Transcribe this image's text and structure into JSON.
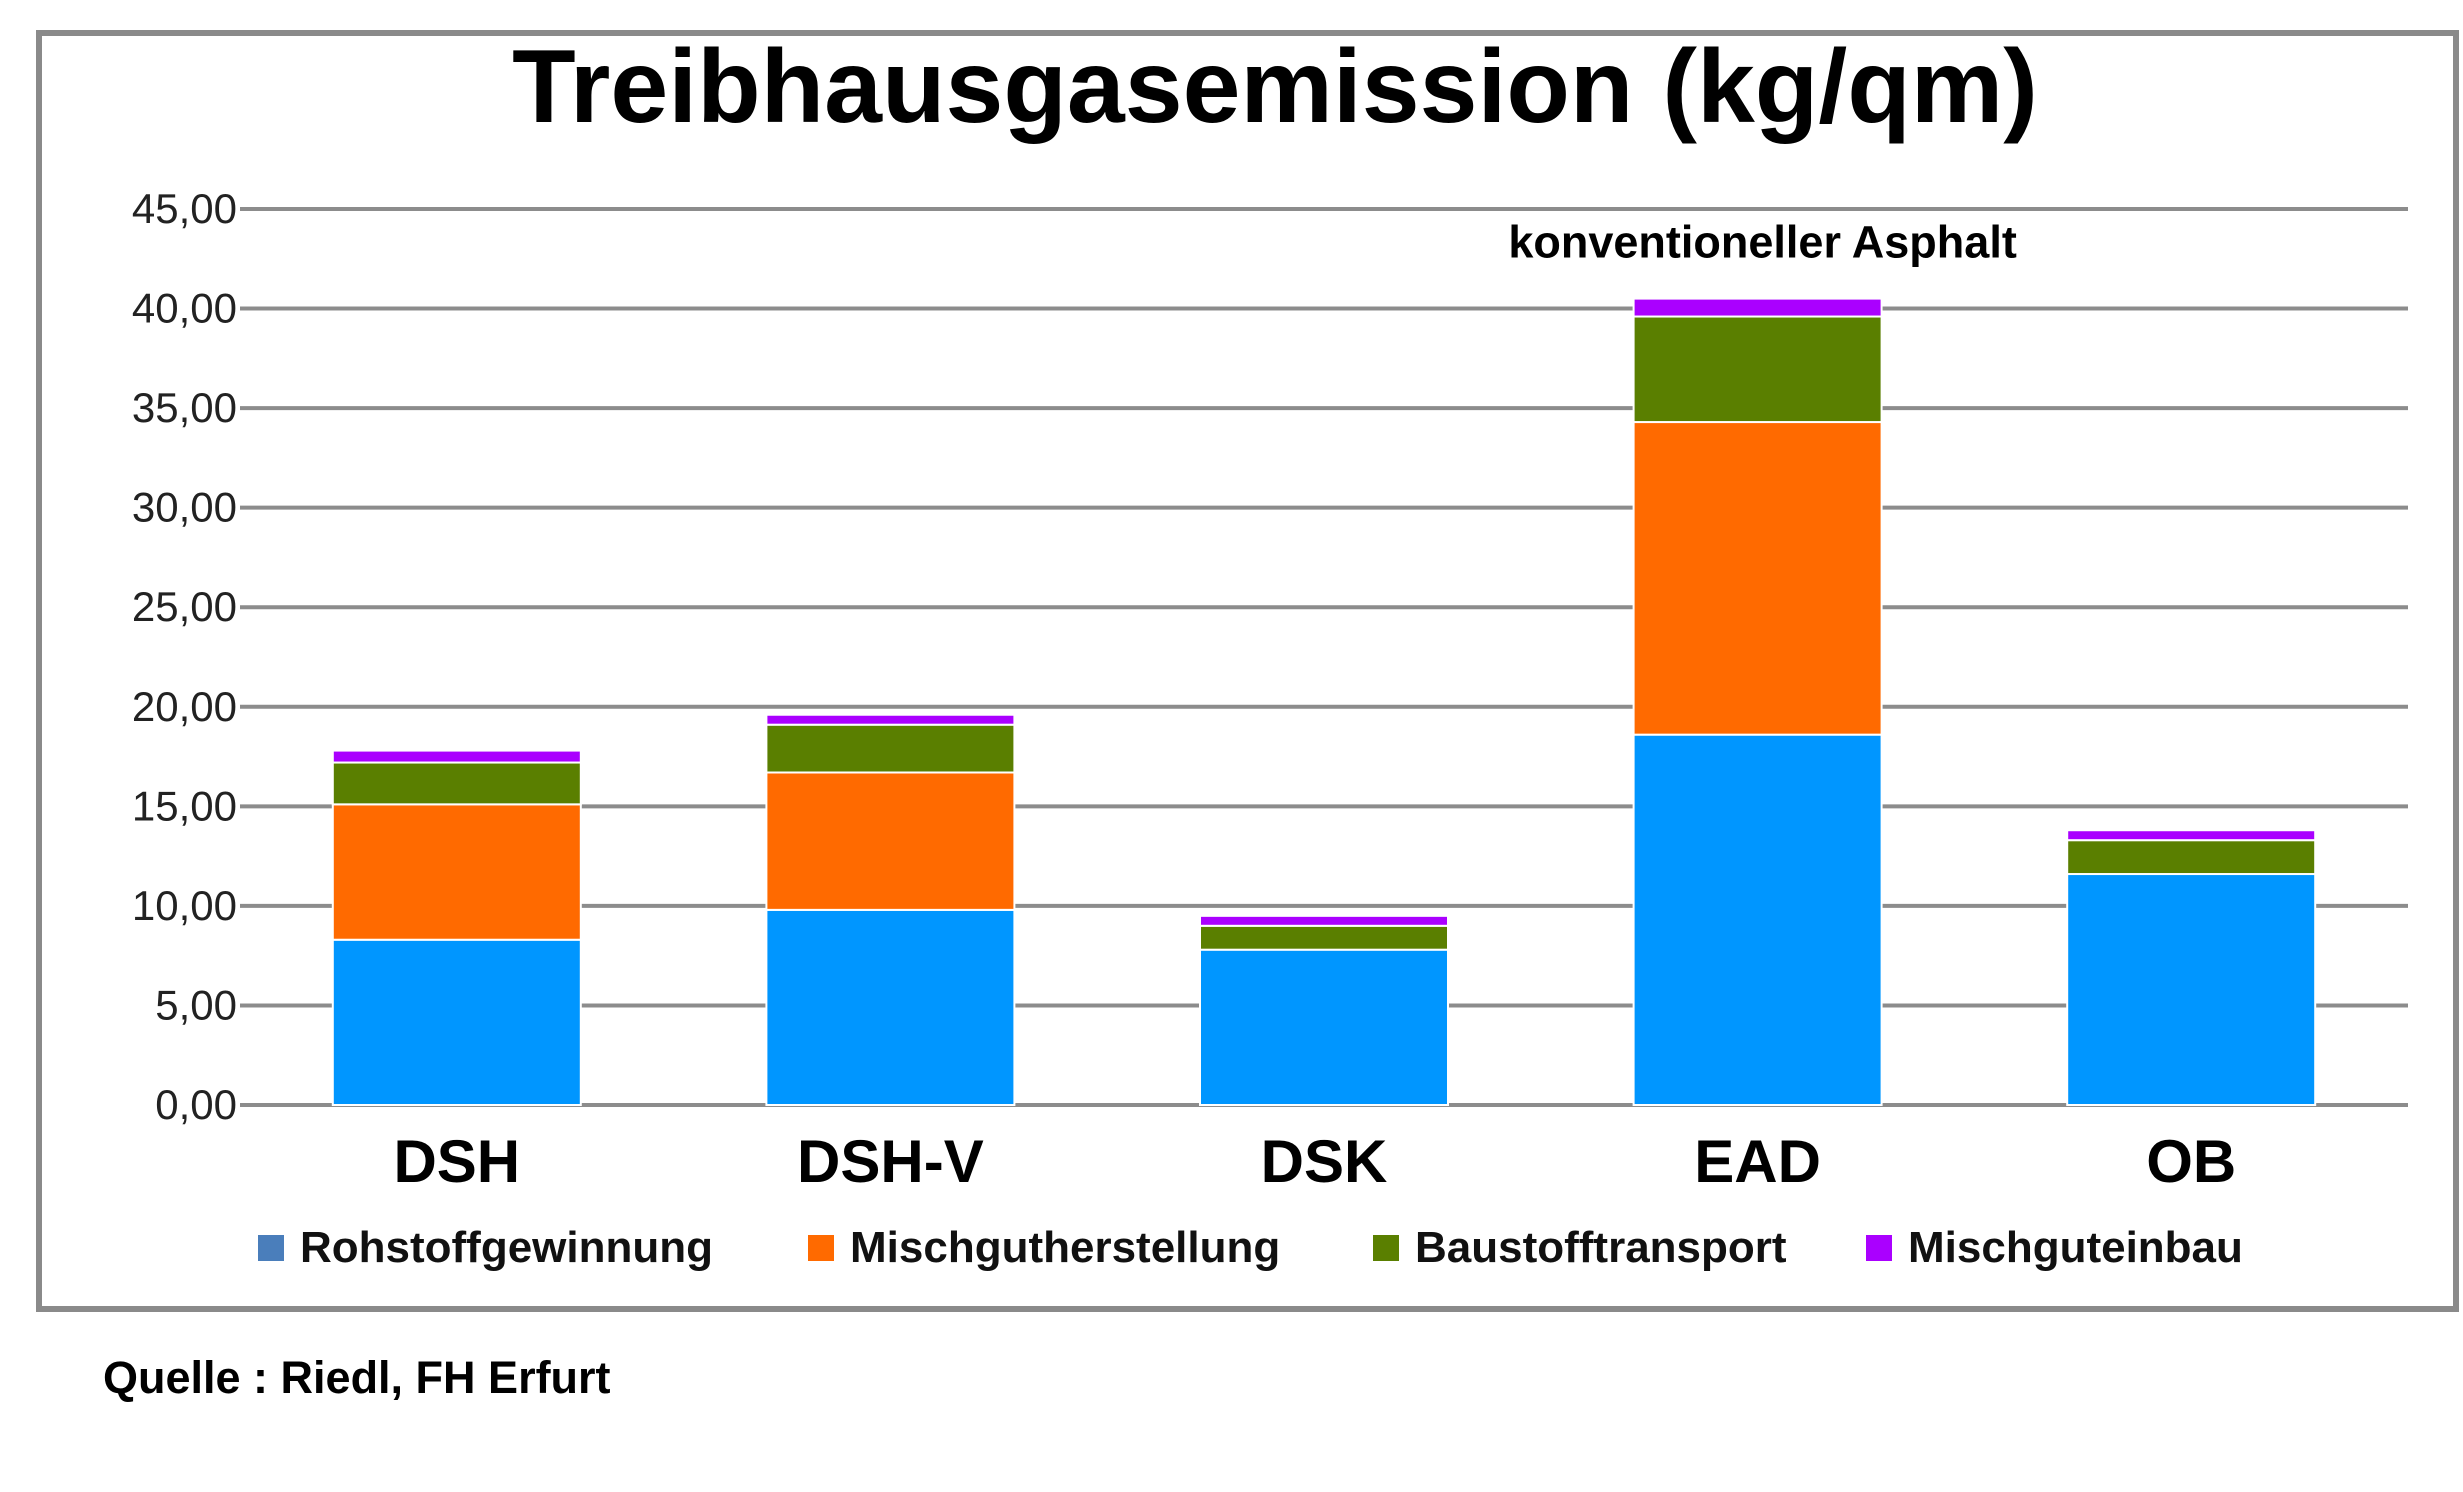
{
  "chart_data": {
    "type": "bar",
    "stacked": true,
    "title": "Treibhausgasemission (kg/qm)",
    "categories": [
      "DSH",
      "DSH-V",
      "DSK",
      "EAD",
      "OB"
    ],
    "series": [
      {
        "name": "Rohstoffgewinnung",
        "color": "#0096ff",
        "legend_color": "#4a7ebb",
        "values": [
          8.3,
          9.8,
          7.8,
          18.6,
          11.6
        ]
      },
      {
        "name": "Mischgutherstellung",
        "color": "#ff6a00",
        "legend_color": "#ff6a00",
        "values": [
          6.8,
          6.9,
          0.0,
          15.7,
          0.0
        ]
      },
      {
        "name": "Baustofftransport",
        "color": "#5a7f00",
        "legend_color": "#5a7f00",
        "values": [
          2.1,
          2.4,
          1.2,
          5.3,
          1.7
        ]
      },
      {
        "name": "Mischguteinbau",
        "color": "#aa00ff",
        "legend_color": "#aa00ff",
        "values": [
          0.6,
          0.5,
          0.5,
          0.9,
          0.5
        ]
      }
    ],
    "yticks": [
      "0,00",
      "5,00",
      "10,00",
      "15,00",
      "20,00",
      "25,00",
      "30,00",
      "35,00",
      "40,00",
      "45,00"
    ],
    "ylim": [
      0,
      45
    ],
    "grid": true,
    "legend_position": "bottom",
    "annotations": [
      {
        "text": "konventioneller Asphalt",
        "category": "EAD"
      }
    ]
  },
  "source": "Quelle : Riedl, FH Erfurt"
}
